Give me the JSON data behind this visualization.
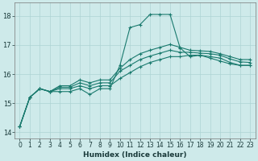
{
  "xlabel": "Humidex (Indice chaleur)",
  "bg_color": "#ceeaea",
  "grid_color": "#aed4d4",
  "line_color": "#1a7a6e",
  "xlim": [
    -0.5,
    23.5
  ],
  "ylim": [
    13.8,
    18.45
  ],
  "xticks": [
    0,
    1,
    2,
    3,
    4,
    5,
    6,
    7,
    8,
    9,
    10,
    11,
    12,
    13,
    14,
    15,
    16,
    17,
    18,
    19,
    20,
    21,
    22,
    23
  ],
  "yticks": [
    14,
    15,
    16,
    17,
    18
  ],
  "series": [
    [
      14.2,
      15.2,
      15.5,
      15.4,
      15.4,
      15.4,
      15.5,
      15.3,
      15.5,
      15.5,
      16.3,
      17.6,
      17.7,
      18.05,
      18.05,
      18.05,
      16.9,
      16.6,
      16.65,
      16.55,
      16.45,
      16.35,
      16.3,
      16.3
    ],
    [
      14.2,
      15.2,
      15.5,
      15.4,
      15.5,
      15.5,
      15.6,
      15.5,
      15.6,
      15.6,
      15.85,
      16.05,
      16.25,
      16.4,
      16.5,
      16.6,
      16.6,
      16.65,
      16.65,
      16.6,
      16.55,
      16.4,
      16.3,
      16.3
    ],
    [
      14.2,
      15.2,
      15.5,
      15.4,
      15.55,
      15.55,
      15.7,
      15.6,
      15.7,
      15.7,
      16.1,
      16.3,
      16.5,
      16.62,
      16.72,
      16.82,
      16.75,
      16.75,
      16.72,
      16.7,
      16.65,
      16.52,
      16.42,
      16.4
    ],
    [
      14.2,
      15.2,
      15.5,
      15.4,
      15.6,
      15.6,
      15.8,
      15.7,
      15.8,
      15.8,
      16.2,
      16.5,
      16.7,
      16.82,
      16.92,
      17.02,
      16.92,
      16.82,
      16.8,
      16.78,
      16.7,
      16.6,
      16.5,
      16.5
    ]
  ],
  "marker_indices": [
    0,
    2,
    5,
    6,
    7,
    8,
    9,
    10,
    12,
    13,
    14,
    15,
    16,
    17,
    18,
    19,
    20,
    21,
    22,
    23
  ],
  "tick_fontsize": 5.5,
  "xlabel_fontsize": 6.5
}
